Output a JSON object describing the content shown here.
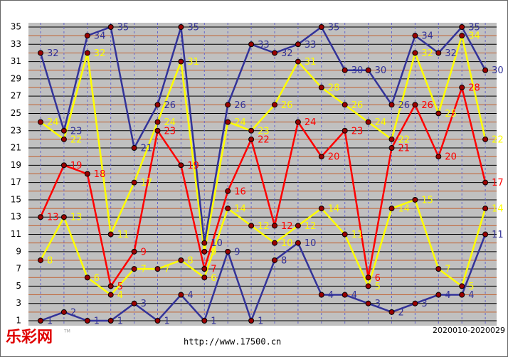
{
  "chart_data": {
    "type": "line",
    "categories": [
      null,
      null,
      null,
      null,
      null,
      null,
      null,
      null,
      null,
      null,
      null,
      null,
      null,
      null,
      null,
      null,
      null,
      null,
      null,
      null
    ],
    "series": [
      {
        "color": "#333399",
        "values": [
          1,
          2,
          1,
          1,
          3,
          1,
          4,
          1,
          9,
          1,
          8,
          10,
          4,
          4,
          3,
          2,
          3,
          4,
          4,
          11
        ]
      },
      {
        "color": "#ffff00",
        "values": [
          8,
          13,
          6,
          4,
          7,
          7,
          8,
          6,
          14,
          12,
          10,
          12,
          14,
          11,
          5,
          14,
          15,
          7,
          5,
          14
        ]
      },
      {
        "color": "#ff0000",
        "values": [
          13,
          19,
          18,
          5,
          9,
          23,
          19,
          7,
          16,
          22,
          12,
          24,
          20,
          23,
          6,
          21,
          26,
          20,
          28,
          17
        ]
      },
      {
        "color": "#ffff00",
        "values": [
          24,
          22,
          32,
          11,
          17,
          24,
          31,
          9,
          24,
          23,
          26,
          31,
          28,
          26,
          24,
          22,
          32,
          25,
          34,
          22
        ]
      },
      {
        "color": "#333399",
        "values": [
          32,
          23,
          34,
          35,
          21,
          26,
          35,
          10,
          26,
          33,
          32,
          33,
          35,
          30,
          30,
          26,
          34,
          32,
          35,
          30
        ]
      }
    ],
    "ylim": [
      1,
      35
    ],
    "yticks": [
      1,
      3,
      5,
      7,
      9,
      11,
      13,
      15,
      17,
      19,
      21,
      23,
      25,
      27,
      29,
      31,
      33,
      35
    ],
    "minor_yticks": [
      2,
      4,
      6,
      8,
      10,
      12,
      14,
      16,
      18,
      20,
      22,
      24,
      26,
      28,
      30,
      32,
      34
    ],
    "grid": true,
    "logo": "乐彩网",
    "logo_mark": "TM",
    "source": "http://www.17500.cn",
    "period": "2020010-2020029"
  }
}
